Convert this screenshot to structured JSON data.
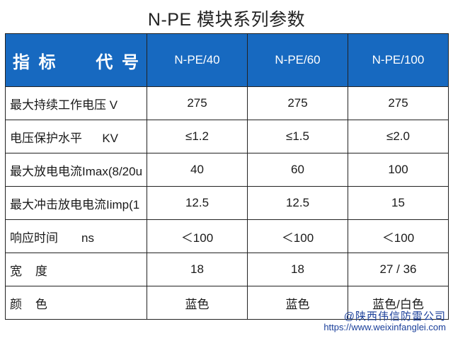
{
  "title": "N-PE 模块系列参数",
  "header": {
    "label_left": "指 标",
    "label_right": "代 号",
    "codes": [
      "N-PE/40",
      "N-PE/60",
      "N-PE/100"
    ]
  },
  "rows": [
    {
      "label": "最大持续工作电压 V",
      "values": [
        "275",
        "275",
        "275"
      ]
    },
    {
      "label": "电压保护水平      KV",
      "values": [
        "≤1.2",
        "≤1.5",
        "≤2.0"
      ]
    },
    {
      "label": "最大放电电流Imax(8/20u",
      "values": [
        "40",
        "60",
        "100"
      ]
    },
    {
      "label": "最大冲击放电电流Iimp(1",
      "values": [
        "12.5",
        "12.5",
        "15"
      ]
    },
    {
      "label": "响应时间       ns",
      "values": [
        "＜100",
        "＜100",
        "＜100"
      ]
    },
    {
      "label": "宽    度",
      "values": [
        "18",
        "18",
        "27 / 36"
      ]
    },
    {
      "label": "颜    色",
      "values": [
        "蓝色",
        "蓝色",
        "蓝色/白色"
      ]
    }
  ],
  "footer": {
    "company": "@陕西伟信防雷公司",
    "url": "https://www.weixinfanglei.com"
  },
  "colors": {
    "header_bg": "#1769c0",
    "footer_text": "#1a3f9a"
  }
}
